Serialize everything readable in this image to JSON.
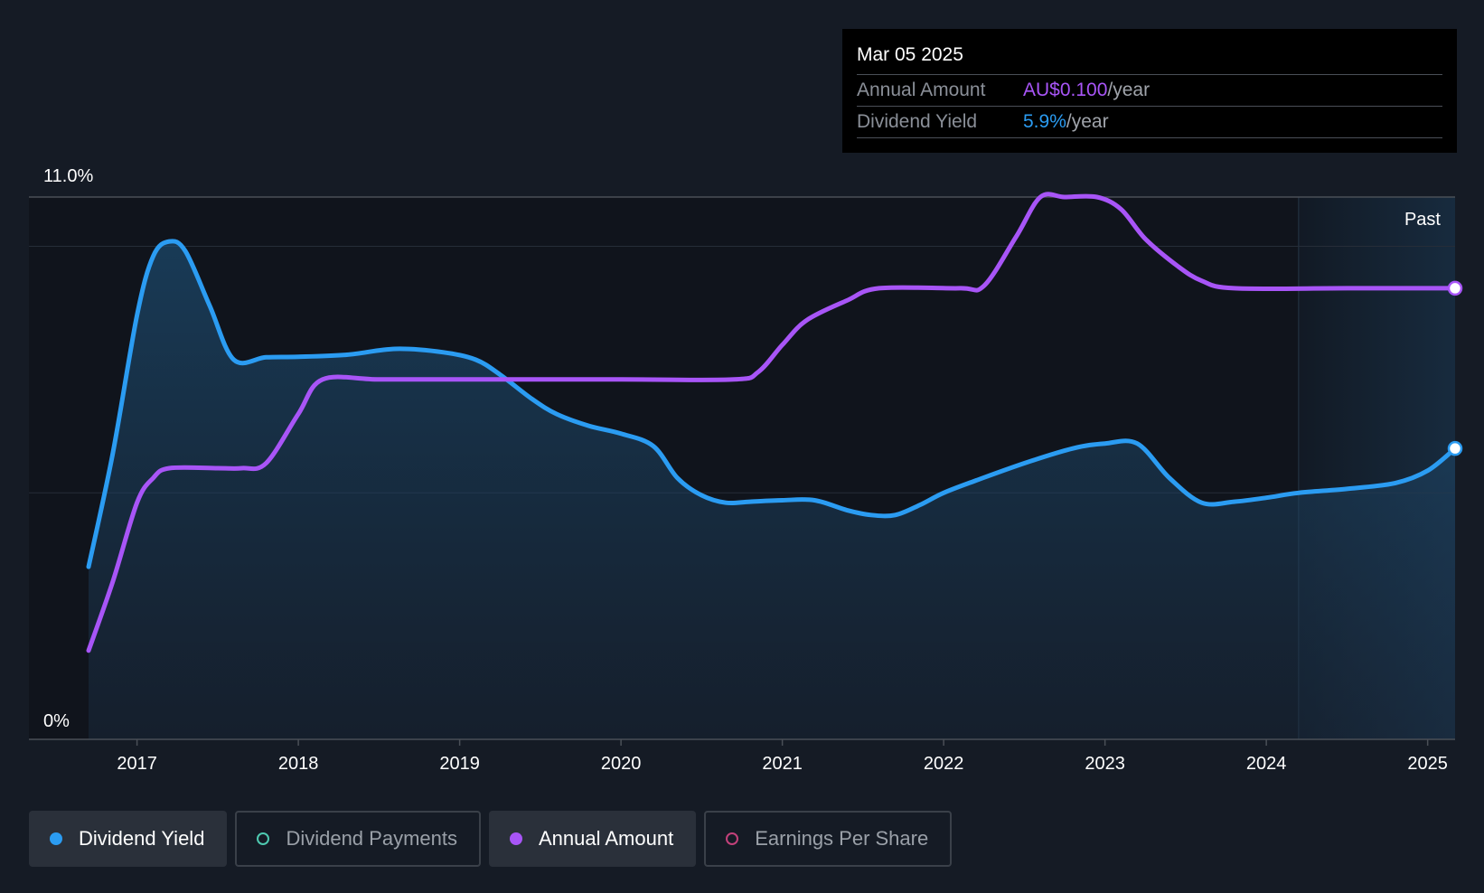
{
  "chart_data": {
    "type": "line",
    "title": "",
    "ylabel": "",
    "xlabel": "",
    "y_axis": {
      "top_label": "11.0%",
      "bottom_label": "0%",
      "ylim": [
        0,
        11.0
      ]
    },
    "x_axis": {
      "ticks": [
        "2017",
        "2018",
        "2019",
        "2020",
        "2021",
        "2022",
        "2023",
        "2024",
        "2025"
      ],
      "range": [
        2016.33,
        2025.17
      ]
    },
    "grid": "horizontal",
    "region_label": "Past",
    "region_start": 2024.2,
    "series": [
      {
        "name": "Dividend Yield",
        "color": "#2b9cf2",
        "filled": true,
        "x": [
          2016.7,
          2016.85,
          2017.0,
          2017.1,
          2017.2,
          2017.3,
          2017.45,
          2017.6,
          2017.8,
          2018.0,
          2018.3,
          2018.6,
          2018.9,
          2019.1,
          2019.25,
          2019.45,
          2019.6,
          2019.8,
          2020.0,
          2020.2,
          2020.35,
          2020.5,
          2020.65,
          2020.8,
          2021.0,
          2021.2,
          2021.4,
          2021.55,
          2021.7,
          2021.85,
          2022.0,
          2022.2,
          2022.5,
          2022.8,
          2023.0,
          2023.2,
          2023.4,
          2023.6,
          2023.8,
          2024.0,
          2024.2,
          2024.5,
          2024.8,
          2025.0,
          2025.17
        ],
        "y": [
          3.5,
          5.8,
          8.6,
          9.8,
          10.1,
          9.9,
          8.8,
          7.7,
          7.75,
          7.76,
          7.8,
          7.92,
          7.85,
          7.7,
          7.4,
          6.9,
          6.6,
          6.36,
          6.2,
          5.95,
          5.3,
          4.95,
          4.8,
          4.82,
          4.85,
          4.85,
          4.65,
          4.55,
          4.55,
          4.75,
          5.0,
          5.25,
          5.6,
          5.9,
          6.0,
          6.0,
          5.3,
          4.8,
          4.82,
          4.9,
          5.0,
          5.08,
          5.2,
          5.45,
          5.9
        ]
      },
      {
        "name": "Annual Amount",
        "color": "#a855f7",
        "filled": false,
        "x": [
          2016.7,
          2016.85,
          2017.0,
          2017.1,
          2017.2,
          2017.5,
          2017.65,
          2017.8,
          2018.0,
          2018.15,
          2018.5,
          2019.0,
          2020.0,
          2020.7,
          2020.85,
          2021.0,
          2021.15,
          2021.4,
          2021.6,
          2022.1,
          2022.25,
          2022.45,
          2022.6,
          2022.75,
          2022.95,
          2023.1,
          2023.25,
          2023.45,
          2023.6,
          2023.8,
          2024.5,
          2025.17
        ],
        "y": [
          1.8,
          3.2,
          4.8,
          5.3,
          5.5,
          5.5,
          5.5,
          5.6,
          6.6,
          7.3,
          7.3,
          7.3,
          7.3,
          7.3,
          7.45,
          8.0,
          8.5,
          8.9,
          9.15,
          9.15,
          9.2,
          10.2,
          11.0,
          11.0,
          11.0,
          10.75,
          10.15,
          9.6,
          9.3,
          9.15,
          9.15,
          9.15
        ]
      }
    ]
  },
  "tooltip": {
    "date": "Mar 05 2025",
    "rows": [
      {
        "label": "Annual Amount",
        "value": "AU$0.100",
        "unit": "/year"
      },
      {
        "label": "Dividend Yield",
        "value": "5.9%",
        "unit": "/year"
      }
    ]
  },
  "legend": [
    {
      "label": "Dividend Yield",
      "color": "#2b9cf2",
      "active": true
    },
    {
      "label": "Dividend Payments",
      "color": "#4ec9b0",
      "active": false
    },
    {
      "label": "Annual Amount",
      "color": "#a855f7",
      "active": true
    },
    {
      "label": "Earnings Per Share",
      "color": "#c2417a",
      "active": false
    }
  ]
}
